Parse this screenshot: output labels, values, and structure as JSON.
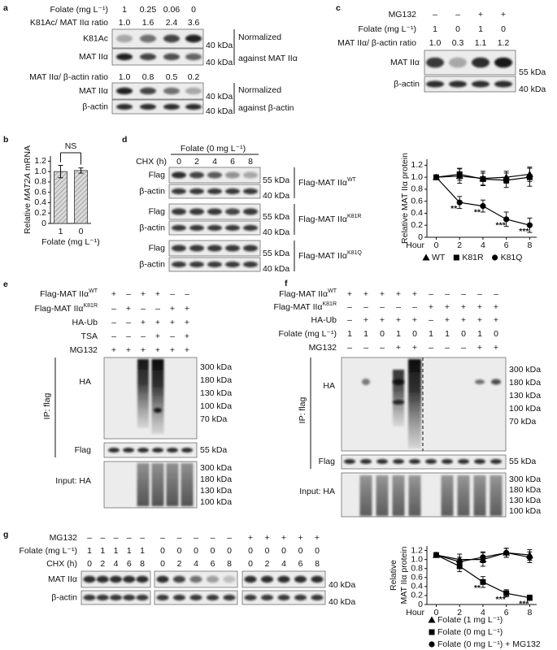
{
  "panels": {
    "a": {
      "label": "a",
      "header": [
        {
          "label": "Folate (mg L⁻¹)",
          "values": [
            "1",
            "0.25",
            "0.06",
            "0"
          ]
        },
        {
          "label": "K81Ac/ MAT IIα ratio",
          "values": [
            "1.0",
            "1.6",
            "2.4",
            "3.6"
          ]
        }
      ],
      "blots_top": [
        {
          "label": "K81Ac",
          "kda": "40 kDa"
        },
        {
          "label": "MAT IIα",
          "kda": "40 kDa"
        }
      ],
      "note_top": [
        "Normalized",
        "against MAT IIα"
      ],
      "mid_row": {
        "label": "MAT IIα/ β-actin ratio",
        "values": [
          "1.0",
          "0.8",
          "0.5",
          "0.2"
        ]
      },
      "blots_bottom": [
        {
          "label": "MAT IIα",
          "kda": "40 kDa"
        },
        {
          "label": "β-actin",
          "kda": "40 kDa"
        }
      ],
      "note_bottom": [
        "Normalized",
        "against β-actin"
      ]
    },
    "b": {
      "label": "b"
    },
    "c": {
      "label": "c",
      "header": [
        {
          "label": "MG132",
          "values": [
            "–",
            "–",
            "+",
            "+"
          ]
        },
        {
          "label": "Folate (mg L⁻¹)",
          "values": [
            "1",
            "0",
            "1",
            "0"
          ]
        },
        {
          "label": "MAT IIα/ β-actin ratio",
          "values": [
            "1.0",
            "0.3",
            "1.1",
            "1.2"
          ]
        }
      ],
      "blots": [
        {
          "label": "MAT IIα",
          "kda": "55 kDa"
        },
        {
          "label": "β-actin",
          "kda": "40 kDa"
        }
      ]
    },
    "d": {
      "label": "d",
      "treatment": "Folate (0 mg L⁻¹)",
      "header": [
        {
          "label": "CHX (h)",
          "values": [
            "0",
            "2",
            "4",
            "6",
            "8"
          ]
        }
      ],
      "sets": [
        {
          "construct": {
            "text": "Flag-MAT IIα",
            "sup": "WT"
          },
          "blots": [
            {
              "label": "Flag",
              "kda": "55 kDa"
            },
            {
              "label": "β-actin",
              "kda": "40 kDa"
            }
          ]
        },
        {
          "construct": {
            "text": "Flag-MAT IIα",
            "sup": "K81R"
          },
          "blots": [
            {
              "label": "Flag",
              "kda": "55 kDa"
            },
            {
              "label": "β-actin",
              "kda": "40 kDa"
            }
          ]
        },
        {
          "construct": {
            "text": "Flag-MAT IIα",
            "sup": "K81Q"
          },
          "blots": [
            {
              "label": "Flag",
              "kda": "55 kDa"
            },
            {
              "label": "β-actin",
              "kda": "40 kDa"
            }
          ]
        }
      ]
    },
    "e": {
      "label": "e",
      "header": [
        {
          "label": {
            "text": "Flag-MAT IIα",
            "sup": "WT"
          },
          "values": [
            "+",
            "–",
            "+",
            "+",
            "–",
            "–"
          ]
        },
        {
          "label": {
            "text": "Flag-MAT IIα",
            "sup": "K81R"
          },
          "values": [
            "–",
            "+",
            "–",
            "–",
            "+",
            "+"
          ]
        },
        {
          "label": "HA-Ub",
          "values": [
            "–",
            "–",
            "+",
            "+",
            "+",
            "+"
          ]
        },
        {
          "label": "TSA",
          "values": [
            "–",
            "–",
            "–",
            "+",
            "–",
            "+"
          ]
        },
        {
          "label": "MG132",
          "values": [
            "+",
            "+",
            "+",
            "+",
            "+",
            "+"
          ]
        }
      ],
      "ip": "IP: flag",
      "blots": [
        {
          "label": "HA",
          "kda": [
            "300 kDa",
            "180 kDa",
            "130 kDa",
            "100 kDa",
            "70 kDa"
          ]
        },
        {
          "label": "Flag",
          "kda": [
            "55 kDa"
          ]
        }
      ],
      "input": {
        "label": "Input: HA",
        "kda": [
          "300 kDa",
          "180 kDa",
          "130 kDa",
          "100 kDa"
        ]
      }
    },
    "f": {
      "label": "f",
      "header": [
        {
          "label": {
            "text": "Flag-MAT IIα",
            "sup": "WT"
          },
          "values": [
            "+",
            "+",
            "+",
            "+",
            "+",
            "–",
            "–",
            "–",
            "–",
            "–"
          ]
        },
        {
          "label": {
            "text": "Flag-MAT IIα",
            "sup": "K81R"
          },
          "values": [
            "–",
            "–",
            "–",
            "–",
            "–",
            "+",
            "+",
            "+",
            "+",
            "+"
          ]
        },
        {
          "label": "HA-Ub",
          "values": [
            "–",
            "+",
            "+",
            "+",
            "+",
            "–",
            "+",
            "+",
            "+",
            "+"
          ]
        },
        {
          "label": "Folate (mg L⁻¹)",
          "values": [
            "1",
            "1",
            "0",
            "1",
            "0",
            "1",
            "1",
            "0",
            "1",
            "0"
          ]
        },
        {
          "label": "MG132",
          "values": [
            "–",
            "–",
            "–",
            "+",
            "+",
            "–",
            "–",
            "–",
            "+",
            "+"
          ]
        }
      ],
      "ip": "IP: flag",
      "blots": [
        {
          "label": "HA",
          "kda": [
            "300 kDa",
            "180 kDa",
            "130 kDa",
            "100 kDa",
            "70 kDa"
          ]
        },
        {
          "label": "Flag",
          "kda": [
            "55 kDa"
          ]
        }
      ],
      "input": {
        "label": "Input: HA",
        "kda": [
          "300 kDa",
          "180 kDa",
          "130 kDa",
          "100 kDa"
        ]
      }
    },
    "g": {
      "label": "g",
      "header": [
        {
          "label": "MG132",
          "values": [
            "–",
            "–",
            "–",
            "–",
            "–",
            "–",
            "–",
            "–",
            "–",
            "–",
            "+",
            "+",
            "+",
            "+",
            "+"
          ]
        },
        {
          "label": "Folate (mg L⁻¹)",
          "values": [
            "1",
            "1",
            "1",
            "1",
            "1",
            "0",
            "0",
            "0",
            "0",
            "0",
            "0",
            "0",
            "0",
            "0",
            "0"
          ]
        },
        {
          "label": "CHX (h)",
          "values": [
            "0",
            "2",
            "4",
            "6",
            "8",
            "0",
            "2",
            "4",
            "6",
            "8",
            "0",
            "2",
            "4",
            "6",
            "8"
          ]
        }
      ],
      "blots": [
        {
          "label": "MAT IIα",
          "kda": "40 kDa"
        },
        {
          "label": "β-actin",
          "kda": "40 kDa"
        }
      ]
    }
  },
  "chart_data": [
    {
      "type": "bar",
      "ylabel": [
        "Relative ",
        "MAT2A",
        " mRNA"
      ],
      "xlabel": "Folate (mg L⁻¹)",
      "categories": [
        "1",
        "0"
      ],
      "values": [
        1.0,
        1.02
      ],
      "errors": [
        0.12,
        0.05
      ],
      "color": "#b4b4b4",
      "ylim": [
        0,
        1.3
      ],
      "yticks": [
        0,
        0.2,
        0.4,
        0.6,
        0.8,
        {
          "value": 1,
          "label": "1.0"
        },
        1.2
      ],
      "annotations": [
        {
          "text": "NS"
        }
      ]
    },
    {
      "type": "line",
      "ylabel": [
        "Relative MAT IIα protein"
      ],
      "xlabel": "Hour",
      "x": [
        0,
        2,
        4,
        6,
        8
      ],
      "xlim": [
        -0.8,
        8.6
      ],
      "xticks": [
        0,
        2,
        4,
        6,
        8
      ],
      "ylim": [
        0,
        1.3
      ],
      "yticks": [
        0,
        0.2,
        0.4,
        0.6,
        0.8,
        {
          "value": 1,
          "label": "1.0"
        },
        1.2
      ],
      "legend": "row",
      "series": [
        {
          "name": "WT",
          "marker": "triangle",
          "color": "#000000",
          "values": [
            1.0,
            1.02,
            0.98,
            1.0,
            1.05
          ],
          "errors": [
            0.02,
            0.12,
            0.12,
            0.1,
            0.12
          ]
        },
        {
          "name": "K81R",
          "marker": "square",
          "color": "#000000",
          "values": [
            1.0,
            1.05,
            0.97,
            0.95,
            1.0
          ],
          "errors": [
            0.02,
            0.1,
            0.1,
            0.12,
            0.15
          ]
        },
        {
          "name": "K81Q",
          "marker": "circle",
          "color": "#000000",
          "values": [
            1.0,
            0.58,
            0.52,
            0.3,
            0.2
          ],
          "errors": [
            0.02,
            0.1,
            0.1,
            0.12,
            0.12
          ]
        }
      ],
      "annotations": [
        {
          "x": 2,
          "text": "**"
        },
        {
          "x": 4,
          "text": "**"
        },
        {
          "x": 6,
          "text": "***"
        },
        {
          "x": 8,
          "text": "***"
        }
      ]
    },
    {
      "type": "line",
      "ylabel": [
        "Relative",
        "MAT IIα protein"
      ],
      "xlabel": "Hour",
      "x": [
        0,
        2,
        4,
        6,
        8
      ],
      "xlim": [
        -0.8,
        8.6
      ],
      "xticks": [
        0,
        2,
        4,
        6,
        8
      ],
      "ylim": [
        0,
        1.3
      ],
      "yticks": [
        0,
        0.2,
        0.4,
        0.6,
        0.8,
        {
          "value": 1,
          "label": "1.0"
        },
        1.2
      ],
      "legend": "column",
      "series": [
        {
          "name": "Folate (1 mg L⁻¹)",
          "marker": "triangle",
          "color": "#000000",
          "values": [
            1.1,
            1.0,
            1.0,
            1.15,
            1.1
          ],
          "errors": [
            0.02,
            0.12,
            0.15,
            0.1,
            0.12
          ]
        },
        {
          "name": "Folate (0 mg L⁻¹)",
          "marker": "square",
          "color": "#000000",
          "values": [
            1.1,
            0.85,
            0.5,
            0.25,
            0.15
          ],
          "errors": [
            0.02,
            0.12,
            0.12,
            0.08,
            0.06
          ]
        },
        {
          "name": "Folate (0 mg L⁻¹) + MG132",
          "marker": "circle",
          "color": "#000000",
          "values": [
            1.1,
            0.95,
            1.05,
            1.15,
            1.05
          ],
          "errors": [
            0.02,
            0.1,
            0.12,
            0.1,
            0.12
          ]
        }
      ],
      "annotations": [
        {
          "x": 4,
          "text": "**"
        },
        {
          "x": 6,
          "text": "***"
        },
        {
          "x": 8,
          "text": "***"
        }
      ]
    }
  ]
}
